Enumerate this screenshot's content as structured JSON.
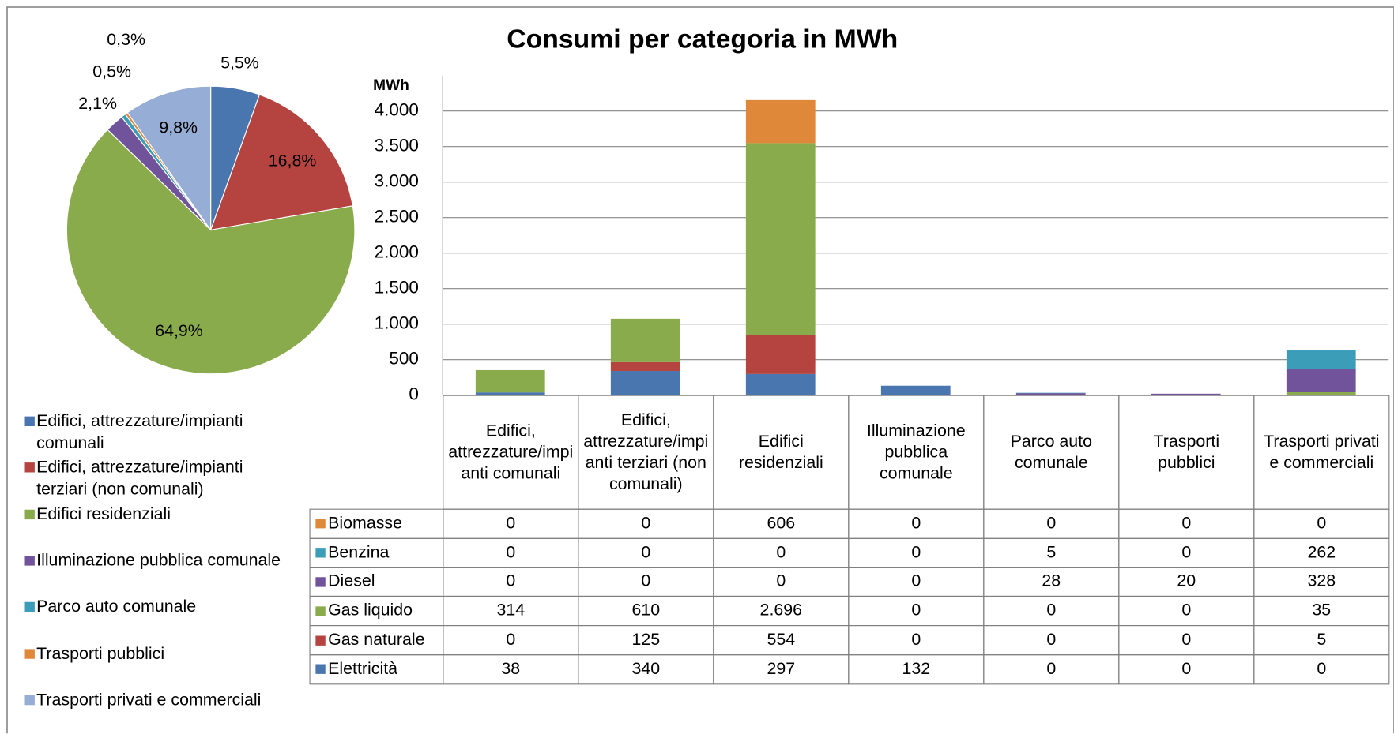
{
  "chart_data": [
    {
      "type": "pie",
      "categories": [
        "Edifici, attrezzature/impianti comunali",
        "Edifici, attrezzature/impianti terziari (non comunali)",
        "Edifici residenziali",
        "Illuminazione pubblica comunale",
        "Parco auto comunale",
        "Trasporti pubblici",
        "Trasporti privati e commerciali"
      ],
      "values": [
        5.5,
        16.8,
        64.9,
        2.1,
        0.5,
        0.3,
        9.8
      ],
      "value_labels": [
        "5,5%",
        "16,8%",
        "64,9%",
        "2,1%",
        "0,5%",
        "0,3%",
        "9,8%"
      ],
      "colors": [
        "#4a76b0",
        "#b54441",
        "#8aab4b",
        "#70539a",
        "#3b9db7",
        "#e0883a",
        "#96add6"
      ],
      "legend": "bottom"
    },
    {
      "type": "bar",
      "stacked": true,
      "title": "Consumi per categoria in MWh",
      "y_label": "MWh",
      "categories": [
        "Edifici, attrezzature/impianti comunali",
        "Edifici, attrezzature/impianti terziari (non comunali)",
        "Edifici residenziali",
        "Illuminazione pubblica comunale",
        "Parco auto comunale",
        "Trasporti pubblici",
        "Trasporti privati e commerciali"
      ],
      "series": [
        {
          "name": "Elettricità",
          "color": "#4a76b0",
          "values": [
            38,
            340,
            297,
            132,
            0,
            0,
            0
          ]
        },
        {
          "name": "Gas naturale",
          "color": "#b54441",
          "values": [
            0,
            125,
            554,
            0,
            0,
            0,
            5
          ]
        },
        {
          "name": "Gas liquido",
          "color": "#8aab4b",
          "values": [
            314,
            610,
            2696,
            0,
            0,
            0,
            35
          ],
          "value_labels": [
            "314",
            "610",
            "2.696",
            "0",
            "0",
            "0",
            "35"
          ]
        },
        {
          "name": "Diesel",
          "color": "#70539a",
          "values": [
            0,
            0,
            0,
            0,
            28,
            20,
            328
          ]
        },
        {
          "name": "Benzina",
          "color": "#3b9db7",
          "values": [
            0,
            0,
            0,
            0,
            5,
            0,
            262
          ]
        },
        {
          "name": "Biomasse",
          "color": "#e0883a",
          "values": [
            0,
            0,
            606,
            0,
            0,
            0,
            0
          ]
        }
      ],
      "ylim": [
        0,
        4500
      ],
      "yticks": [
        0,
        500,
        {
          "value": 1000,
          "label": "1.000"
        },
        {
          "value": 1500,
          "label": "1.500"
        },
        {
          "value": 2000,
          "label": "2.000"
        },
        {
          "value": 2500,
          "label": "2.500"
        },
        {
          "value": 3000,
          "label": "3.000"
        },
        {
          "value": 3500,
          "label": "3.500"
        },
        {
          "value": 4000,
          "label": "4.000"
        }
      ],
      "grid": true,
      "data_table": true
    }
  ]
}
